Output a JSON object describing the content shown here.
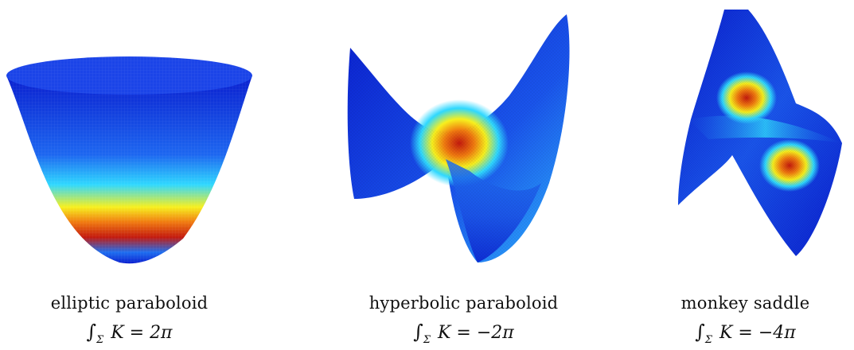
{
  "surfaces": [
    {
      "name": "elliptic paraboloid",
      "integral_sign": "∫",
      "subscript": "Σ",
      "lhs": "K",
      "equals": "=",
      "value": "2π"
    },
    {
      "name": "hyperbolic paraboloid",
      "integral_sign": "∫",
      "subscript": "Σ",
      "lhs": "K",
      "equals": "=",
      "value": "−2π"
    },
    {
      "name": "monkey saddle",
      "integral_sign": "∫",
      "subscript": "Σ",
      "lhs": "K",
      "equals": "=",
      "value": "−4π"
    }
  ],
  "colormap": [
    "#0a1fcf",
    "#1f6ff0",
    "#2fd8ff",
    "#f7f01e",
    "#f07a10",
    "#c41a0e"
  ]
}
